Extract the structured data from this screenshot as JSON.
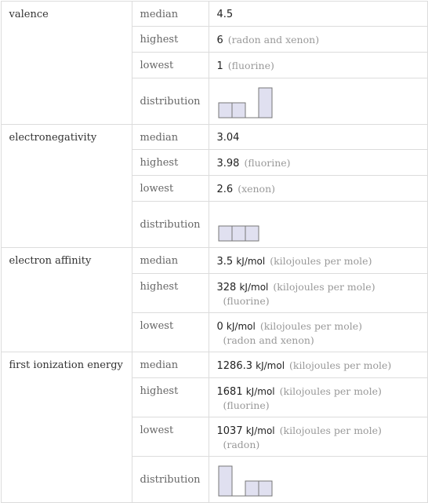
{
  "sections": [
    {
      "name": "valence",
      "rows": [
        {
          "label": "median",
          "value": "4.5"
        },
        {
          "label": "highest",
          "value": "6",
          "note": "(radon and xenon)"
        },
        {
          "label": "lowest",
          "value": "1",
          "note": "(fluorine)"
        },
        {
          "label": "distribution",
          "distribution": [
            1,
            1,
            0,
            2
          ]
        }
      ]
    },
    {
      "name": "electronegativity",
      "rows": [
        {
          "label": "median",
          "value": "3.04"
        },
        {
          "label": "highest",
          "value": "3.98",
          "note": "(fluorine)"
        },
        {
          "label": "lowest",
          "value": "2.6",
          "note": "(xenon)"
        },
        {
          "label": "distribution",
          "distribution": [
            1,
            1,
            1
          ]
        }
      ]
    },
    {
      "name": "electron affinity",
      "rows": [
        {
          "label": "median",
          "value": "3.5",
          "unit": "kJ/mol",
          "unit_name": "(kilojoules per mole)"
        },
        {
          "label": "highest",
          "value": "328",
          "unit": "kJ/mol",
          "unit_name": "(kilojoules per mole)",
          "note": "(fluorine)"
        },
        {
          "label": "lowest",
          "value": "0",
          "unit": "kJ/mol",
          "unit_name": "(kilojoules per mole)",
          "note": "(radon and xenon)"
        }
      ]
    },
    {
      "name": "first ionization energy",
      "rows": [
        {
          "label": "median",
          "value": "1286.3",
          "unit": "kJ/mol",
          "unit_name": "(kilojoules per mole)"
        },
        {
          "label": "highest",
          "value": "1681",
          "unit": "kJ/mol",
          "unit_name": "(kilojoules per mole)",
          "note": "(fluorine)"
        },
        {
          "label": "lowest",
          "value": "1037",
          "unit": "kJ/mol",
          "unit_name": "(kilojoules per mole)",
          "note": "(radon)"
        },
        {
          "label": "distribution",
          "distribution": [
            2,
            0,
            1,
            1
          ]
        }
      ]
    }
  ]
}
